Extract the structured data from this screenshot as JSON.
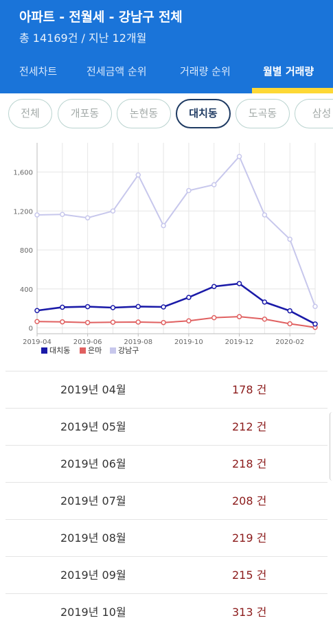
{
  "header": {
    "title": "아파트 - 전월세 - 강남구 전체",
    "subtitle": "총 14169건 / 지난 12개월"
  },
  "tabs": [
    {
      "label": "전세차트"
    },
    {
      "label": "전세금액 순위"
    },
    {
      "label": "거래량 순위"
    },
    {
      "label": "월별 거래량",
      "active": true
    }
  ],
  "chips": [
    {
      "label": "전체"
    },
    {
      "label": "개포동"
    },
    {
      "label": "논현동"
    },
    {
      "label": "대치동",
      "active": true
    },
    {
      "label": "도곡동"
    },
    {
      "label": "삼성"
    }
  ],
  "chart_data": {
    "type": "line",
    "x": [
      "2019-04",
      "2019-05",
      "2019-06",
      "2019-07",
      "2019-08",
      "2019-09",
      "2019-10",
      "2019-11",
      "2019-12",
      "2020-01",
      "2020-02",
      "2020-03"
    ],
    "x_tick_labels": [
      "2019-04",
      "2019-06",
      "2019-08",
      "2019-10",
      "2019-12",
      "2020-02"
    ],
    "y_ticks": [
      0,
      400,
      800,
      1200,
      1600
    ],
    "y_tick_labels": [
      "0",
      "400",
      "800",
      "1,200",
      "1,600"
    ],
    "ylim": [
      -60,
      1900
    ],
    "grid": true,
    "legend_position": "bottom-left",
    "series": [
      {
        "name": "대치동",
        "color": "#1a1aa8",
        "values": [
          178,
          212,
          218,
          208,
          219,
          215,
          313,
          425,
          455,
          265,
          175,
          40
        ]
      },
      {
        "name": "은마",
        "color": "#e06060",
        "values": [
          65,
          62,
          55,
          58,
          60,
          55,
          72,
          105,
          115,
          90,
          42,
          5
        ]
      },
      {
        "name": "강남구",
        "color": "#c7c7ec",
        "values": [
          1160,
          1165,
          1130,
          1200,
          1570,
          1050,
          1410,
          1470,
          1760,
          1160,
          910,
          220
        ]
      }
    ]
  },
  "list": {
    "year_suffix": "년",
    "month_suffix": "월",
    "count_suffix": "건",
    "rows": [
      {
        "year": "2019",
        "month": "04",
        "count": "178"
      },
      {
        "year": "2019",
        "month": "05",
        "count": "212"
      },
      {
        "year": "2019",
        "month": "06",
        "count": "218"
      },
      {
        "year": "2019",
        "month": "07",
        "count": "208"
      },
      {
        "year": "2019",
        "month": "08",
        "count": "219"
      },
      {
        "year": "2019",
        "month": "09",
        "count": "215"
      },
      {
        "year": "2019",
        "month": "10",
        "count": "313"
      }
    ]
  }
}
